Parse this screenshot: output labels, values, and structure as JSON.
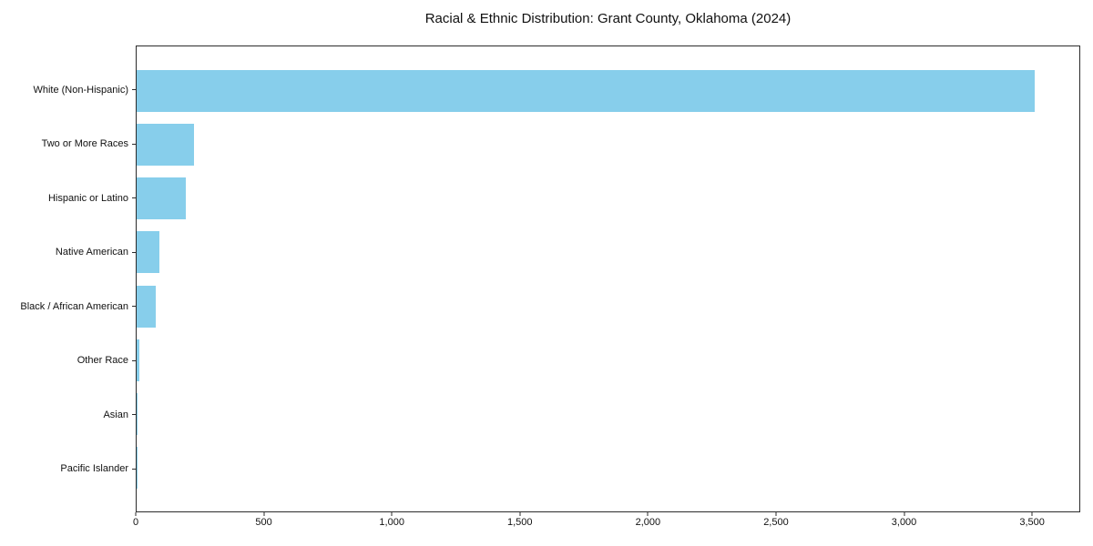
{
  "chart_data": {
    "type": "bar",
    "orientation": "horizontal",
    "title": "Racial & Ethnic Distribution: Grant County, Oklahoma (2024)",
    "categories": [
      "White (Non-Hispanic)",
      "Two or More Races",
      "Hispanic or Latino",
      "Native American",
      "Black / African American",
      "Other Race",
      "Asian",
      "Pacific Islander"
    ],
    "values": [
      3512,
      223,
      191,
      90,
      74,
      11,
      4,
      1
    ],
    "xlabel": "",
    "ylabel": "",
    "xlim": [
      0,
      3688
    ],
    "x_ticks": [
      0,
      500,
      1000,
      1500,
      2000,
      2500,
      3000,
      3500
    ],
    "x_tick_labels": [
      "0",
      "500",
      "1,000",
      "1,500",
      "2,000",
      "2,500",
      "3,000",
      "3,500"
    ],
    "bar_color": "#87CEEB",
    "spine_color": "#2b2b2b",
    "grid": false,
    "legend_position": "none"
  }
}
